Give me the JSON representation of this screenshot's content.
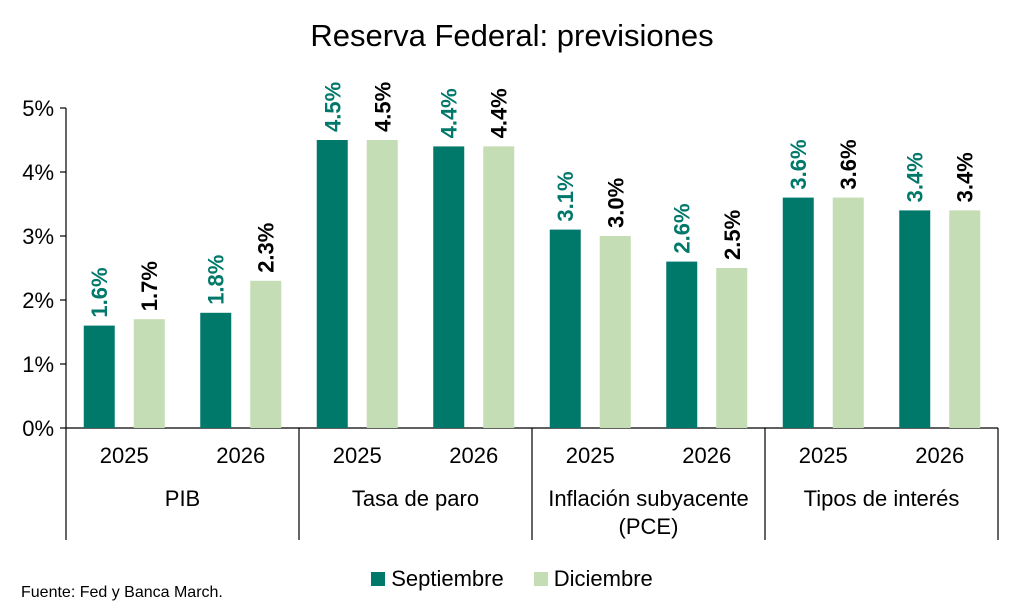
{
  "colors": {
    "septiembre": "#00786A",
    "diciembre": "#C4DDB4",
    "axis": "#000000"
  },
  "chart_data": {
    "type": "bar",
    "title": "Reserva Federal: previsiones",
    "groups": [
      {
        "label": [
          "PIB"
        ],
        "categories": [
          "2025",
          "2026"
        ]
      },
      {
        "label": [
          "Tasa de paro"
        ],
        "categories": [
          "2025",
          "2026"
        ]
      },
      {
        "label": [
          "Inflación subyacente",
          "(PCE)"
        ],
        "categories": [
          "2025",
          "2026"
        ]
      },
      {
        "label": [
          "Tipos de interés"
        ],
        "categories": [
          "2025",
          "2026"
        ]
      }
    ],
    "series": [
      {
        "name": "Septiembre",
        "values": [
          1.6,
          1.8,
          4.5,
          4.4,
          3.1,
          2.6,
          3.6,
          3.4
        ],
        "labels": [
          "1.6%",
          "1.8%",
          "4.5%",
          "4.4%",
          "3.1%",
          "2.6%",
          "3.6%",
          "3.4%"
        ]
      },
      {
        "name": "Diciembre",
        "values": [
          1.7,
          2.3,
          4.5,
          4.4,
          3.0,
          2.5,
          3.6,
          3.4
        ],
        "labels": [
          "1.7%",
          "2.3%",
          "4.5%",
          "4.4%",
          "3.0%",
          "2.5%",
          "3.6%",
          "3.4%"
        ]
      }
    ],
    "y_ticks": [
      "0%",
      "1%",
      "2%",
      "3%",
      "4%",
      "5%"
    ],
    "ylim": [
      0,
      5
    ],
    "grid": false,
    "legend_position": "bottom"
  },
  "source": "Fuente: Fed y Banca March."
}
